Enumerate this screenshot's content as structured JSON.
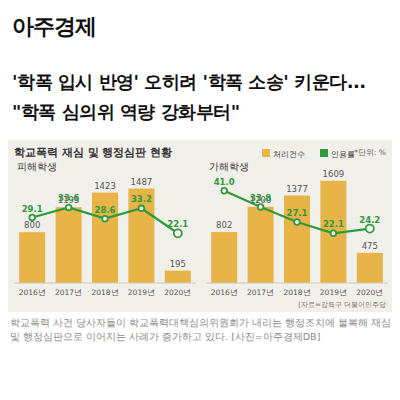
{
  "header": {
    "logo": "아주경제",
    "headline": [
      "'학폭 입시 반영' 오히려 '학폭 소송' 키운다...",
      "\"학폭 심의위 역량 강화부터\""
    ]
  },
  "figure": {
    "title": "학교폭력 재심 및 행정심판 현황",
    "unit": "*단위: %",
    "source": "[자료=강득구 더불어민주당"
  },
  "chart_data": [
    {
      "type": "bar",
      "title": "피해학생",
      "categories": [
        "2016년",
        "2017년",
        "2018년",
        "2019년",
        "2020년"
      ],
      "series": [
        {
          "name": "처리건수",
          "type": "bar",
          "color": "#e8b447",
          "values": [
            800,
            1193,
            1423,
            1487,
            195
          ]
        },
        {
          "name": "인용률",
          "type": "line",
          "axis": "y2",
          "color": "#2e9a3c",
          "marker": "circle",
          "values": [
            29.1,
            33.6,
            28.6,
            33.2,
            22.1
          ]
        }
      ],
      "ylim": [
        0,
        1700
      ],
      "y2lim": [
        0,
        48
      ],
      "tick_labels": false,
      "data_labels": true,
      "legend": "top-right"
    },
    {
      "type": "bar",
      "title": "가해학생",
      "categories": [
        "2016년",
        "2017년",
        "2018년",
        "2019년",
        "2020년"
      ],
      "series": [
        {
          "name": "처리건수",
          "type": "bar",
          "color": "#e8b447",
          "values": [
            802,
            1200,
            1377,
            1609,
            475
          ]
        },
        {
          "name": "인용률",
          "type": "line",
          "axis": "y2",
          "color": "#2e9a3c",
          "marker": "circle",
          "values": [
            41.0,
            33.8,
            27.1,
            22.1,
            24.2
          ],
          "value_labels": [
            "41.0",
            "33.8",
            "27.1",
            "22.1",
            "24.2"
          ]
        }
      ],
      "ylim": [
        0,
        1700
      ],
      "y2lim": [
        0,
        48
      ],
      "tick_labels": false,
      "data_labels": true
    }
  ],
  "caption": "학교폭력 사건 당사자들이 학교폭력대책심의위원회가 내리는 행정조치에 불복해 재심 및 행정심판으로 이어지는 사례가 증가하고 있다. [사진=아주경제DB]"
}
